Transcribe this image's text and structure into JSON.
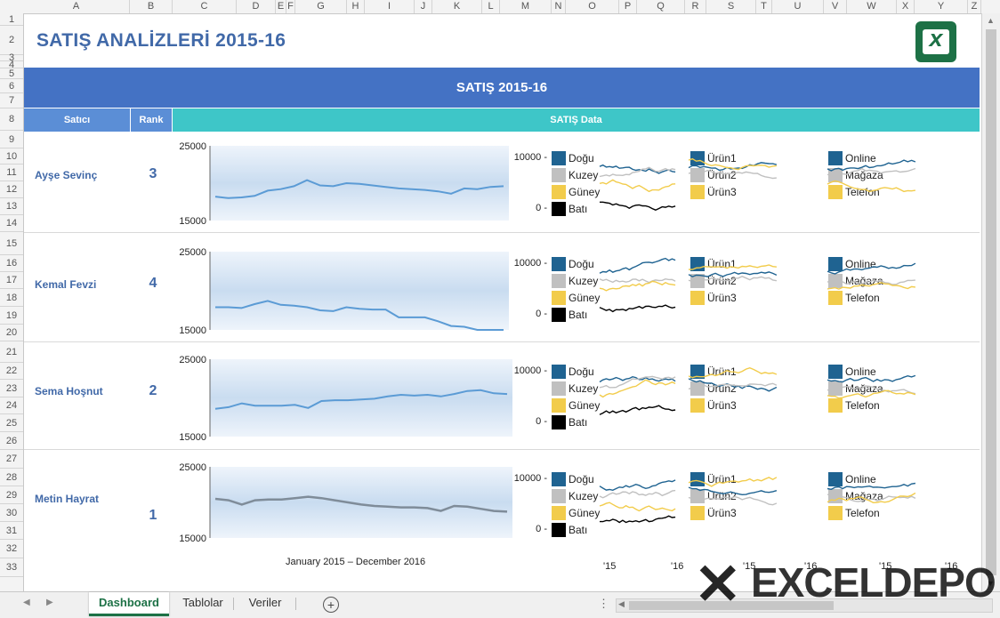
{
  "columns": [
    "A",
    "B",
    "C",
    "D",
    "E",
    "F",
    "G",
    "H",
    "I",
    "J",
    "K",
    "L",
    "M",
    "N",
    "O",
    "P",
    "Q",
    "R",
    "S",
    "T",
    "U",
    "V",
    "W",
    "X",
    "Y",
    "Z"
  ],
  "rows": [
    "1",
    "2",
    "3",
    "4",
    "5",
    "6",
    "7",
    "8",
    "9",
    "10",
    "11",
    "12",
    "13",
    "14",
    "15",
    "16",
    "17",
    "18",
    "19",
    "20",
    "21",
    "22",
    "23",
    "24",
    "25",
    "26",
    "27",
    "28",
    "29",
    "30",
    "31",
    "32",
    "33"
  ],
  "title": "SATIŞ ANALİZLERİ 2015-16",
  "logo_letter": "x",
  "banner": "SATIŞ 2015-16",
  "header": {
    "satici": "Satıcı",
    "rank": "Rank",
    "data": "SATIŞ Data"
  },
  "colors": {
    "dogu": "#1f6391",
    "kuzey": "#c0c0c0",
    "guney": "#f2cc4b",
    "bati": "#000000",
    "line": "#5b9bd5",
    "gray_line": "#7f8c99",
    "accent": "#4472c4",
    "teal": "#3ec6c8"
  },
  "legend_groups": [
    [
      "Doğu",
      "Kuzey",
      "Güney",
      "Batı"
    ],
    [
      "Ürün1",
      "Ürün2",
      "Ürün3"
    ],
    [
      "Online",
      "Mağaza",
      "Telefon"
    ]
  ],
  "axis": {
    "ymax": "25000",
    "ymin": "15000",
    "spark_top": "10000 -",
    "spark_bottom": "0 -"
  },
  "sellers": [
    {
      "name": "Ayşe Sevinç",
      "rank": "3",
      "values": [
        18200,
        18000,
        18100,
        18300,
        19000,
        19200,
        19600,
        20400,
        19700,
        19600,
        20000,
        19900,
        19700,
        19500,
        19300,
        19200,
        19100,
        18900,
        18600,
        19300,
        19200,
        19500,
        19600
      ]
    },
    {
      "name": "Kemal Fevzi",
      "rank": "4",
      "values": [
        17900,
        17900,
        17800,
        18300,
        18700,
        18200,
        18100,
        17900,
        17500,
        17400,
        17900,
        17700,
        17600,
        17600,
        16600,
        16600,
        16600,
        16100,
        15500,
        15400,
        15000,
        15000,
        15000
      ]
    },
    {
      "name": "Sema Hoşnut",
      "rank": "2",
      "values": [
        18600,
        18800,
        19300,
        19000,
        19000,
        19000,
        19100,
        18700,
        19600,
        19700,
        19700,
        19800,
        19900,
        20200,
        20400,
        20300,
        20400,
        20200,
        20500,
        20900,
        21000,
        20600,
        20500
      ]
    },
    {
      "name": "Metin Hayrat",
      "rank": "1",
      "values": [
        20500,
        20300,
        19700,
        20300,
        20400,
        20400,
        20600,
        20800,
        20600,
        20300,
        20000,
        19700,
        19500,
        19400,
        19300,
        19300,
        19200,
        18800,
        19500,
        19400,
        19100,
        18800,
        18700
      ]
    }
  ],
  "footer_caption": "January 2015 – December 2016",
  "spark_x_labels": [
    "'15",
    "'16"
  ],
  "tabs": [
    "Dashboard",
    "Tablolar",
    "Veriler"
  ],
  "watermark": "EXCELDEPO"
}
